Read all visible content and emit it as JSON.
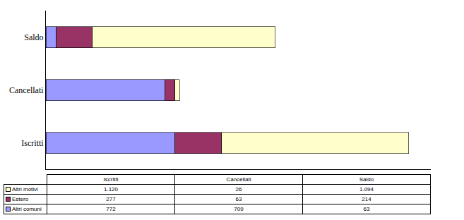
{
  "chart_data": {
    "type": "bar",
    "orientation": "horizontal",
    "stacked": true,
    "categories": [
      "Iscritti",
      "Cancellati",
      "Saldo"
    ],
    "series": [
      {
        "name": "Altri comuni",
        "color": "#9999ff",
        "values": [
          772,
          709,
          63
        ],
        "value_labels": [
          "772",
          "709",
          "63"
        ]
      },
      {
        "name": "Estero",
        "color": "#993366",
        "values": [
          277,
          63,
          214
        ],
        "value_labels": [
          "277",
          "63",
          "214"
        ]
      },
      {
        "name": "Altri motivi",
        "color": "#ffffcc",
        "values": [
          1120,
          26,
          1094
        ],
        "value_labels": [
          "1.120",
          "26",
          "1.094"
        ]
      }
    ],
    "xlim": [
      0,
      2300
    ],
    "xticks": [],
    "tick_labels": "y",
    "grid": false,
    "legend": "bottom"
  }
}
